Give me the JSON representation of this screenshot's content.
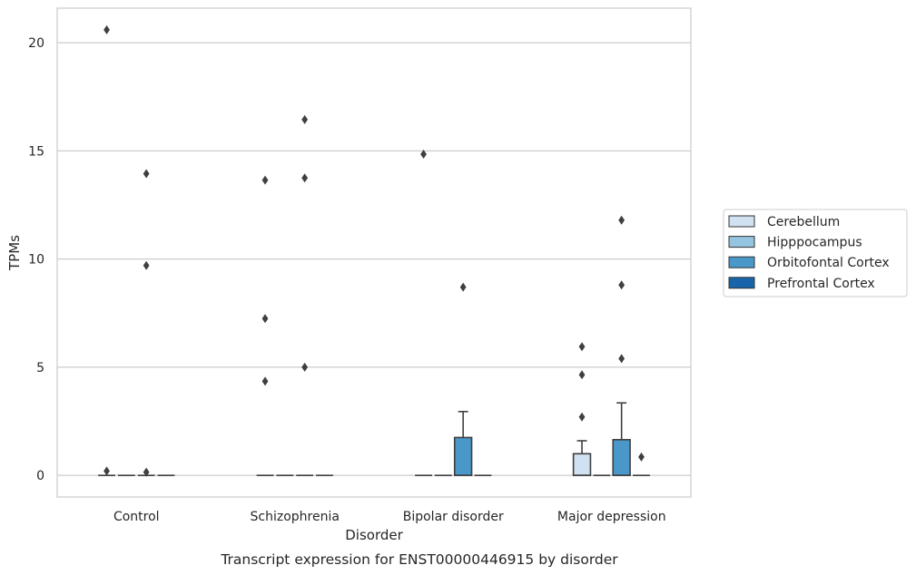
{
  "caption": "Transcript expression for ENST00000446915 by disorder",
  "chart_data": {
    "type": "box",
    "xlabel": "Disorder",
    "ylabel": "TPMs",
    "categories": [
      "Control",
      "Schizophrenia",
      "Bipolar disorder",
      "Major depression"
    ],
    "ylim": [
      -1,
      21.6
    ],
    "yticks": [
      0,
      5,
      10,
      15,
      20
    ],
    "grid": "horizontal",
    "legend_position": "right",
    "series": [
      {
        "name": "Cerebellum",
        "color": "#d0e1f2"
      },
      {
        "name": "Hipppocampus",
        "color": "#94c4df"
      },
      {
        "name": "Orbitofontal Cortex",
        "color": "#4a98c9"
      },
      {
        "name": "Prefrontal Cortex",
        "color": "#1764ab"
      }
    ],
    "boxes": [
      {
        "category": "Control",
        "series": "Cerebellum",
        "q1": 0,
        "median": 0,
        "q3": 0,
        "whisker_low": 0,
        "whisker_high": 0,
        "outliers": [
          20.6,
          0.2
        ]
      },
      {
        "category": "Control",
        "series": "Hipppocampus",
        "q1": 0,
        "median": 0,
        "q3": 0,
        "whisker_low": 0,
        "whisker_high": 0,
        "outliers": []
      },
      {
        "category": "Control",
        "series": "Orbitofontal Cortex",
        "q1": 0,
        "median": 0,
        "q3": 0,
        "whisker_low": 0,
        "whisker_high": 0,
        "outliers": [
          13.95,
          9.7,
          0.15
        ]
      },
      {
        "category": "Control",
        "series": "Prefrontal Cortex",
        "q1": 0,
        "median": 0,
        "q3": 0,
        "whisker_low": 0,
        "whisker_high": 0,
        "outliers": []
      },
      {
        "category": "Schizophrenia",
        "series": "Cerebellum",
        "q1": 0,
        "median": 0,
        "q3": 0,
        "whisker_low": 0,
        "whisker_high": 0,
        "outliers": [
          13.65,
          7.25,
          4.35
        ]
      },
      {
        "category": "Schizophrenia",
        "series": "Hipppocampus",
        "q1": 0,
        "median": 0,
        "q3": 0,
        "whisker_low": 0,
        "whisker_high": 0,
        "outliers": []
      },
      {
        "category": "Schizophrenia",
        "series": "Orbitofontal Cortex",
        "q1": 0,
        "median": 0,
        "q3": 0,
        "whisker_low": 0,
        "whisker_high": 0,
        "outliers": [
          16.45,
          13.75,
          5.0
        ]
      },
      {
        "category": "Schizophrenia",
        "series": "Prefrontal Cortex",
        "q1": 0,
        "median": 0,
        "q3": 0,
        "whisker_low": 0,
        "whisker_high": 0,
        "outliers": []
      },
      {
        "category": "Bipolar disorder",
        "series": "Cerebellum",
        "q1": 0,
        "median": 0,
        "q3": 0,
        "whisker_low": 0,
        "whisker_high": 0,
        "outliers": [
          14.85
        ]
      },
      {
        "category": "Bipolar disorder",
        "series": "Hipppocampus",
        "q1": 0,
        "median": 0,
        "q3": 0,
        "whisker_low": 0,
        "whisker_high": 0,
        "outliers": []
      },
      {
        "category": "Bipolar disorder",
        "series": "Orbitofontal Cortex",
        "q1": 0,
        "median": 0,
        "q3": 1.75,
        "whisker_low": 0,
        "whisker_high": 2.95,
        "outliers": [
          8.7
        ]
      },
      {
        "category": "Bipolar disorder",
        "series": "Prefrontal Cortex",
        "q1": 0,
        "median": 0,
        "q3": 0,
        "whisker_low": 0,
        "whisker_high": 0,
        "outliers": []
      },
      {
        "category": "Major depression",
        "series": "Cerebellum",
        "q1": 0,
        "median": 0,
        "q3": 1.0,
        "whisker_low": 0,
        "whisker_high": 1.6,
        "outliers": [
          5.95,
          4.65,
          2.7
        ]
      },
      {
        "category": "Major depression",
        "series": "Hipppocampus",
        "q1": 0,
        "median": 0,
        "q3": 0,
        "whisker_low": 0,
        "whisker_high": 0,
        "outliers": []
      },
      {
        "category": "Major depression",
        "series": "Orbitofontal Cortex",
        "q1": 0,
        "median": 0,
        "q3": 1.65,
        "whisker_low": 0,
        "whisker_high": 3.35,
        "outliers": [
          11.8,
          8.8,
          5.4
        ]
      },
      {
        "category": "Major depression",
        "series": "Prefrontal Cortex",
        "q1": 0,
        "median": 0,
        "q3": 0,
        "whisker_low": 0,
        "whisker_high": 0,
        "outliers": [
          0.85
        ]
      }
    ]
  }
}
